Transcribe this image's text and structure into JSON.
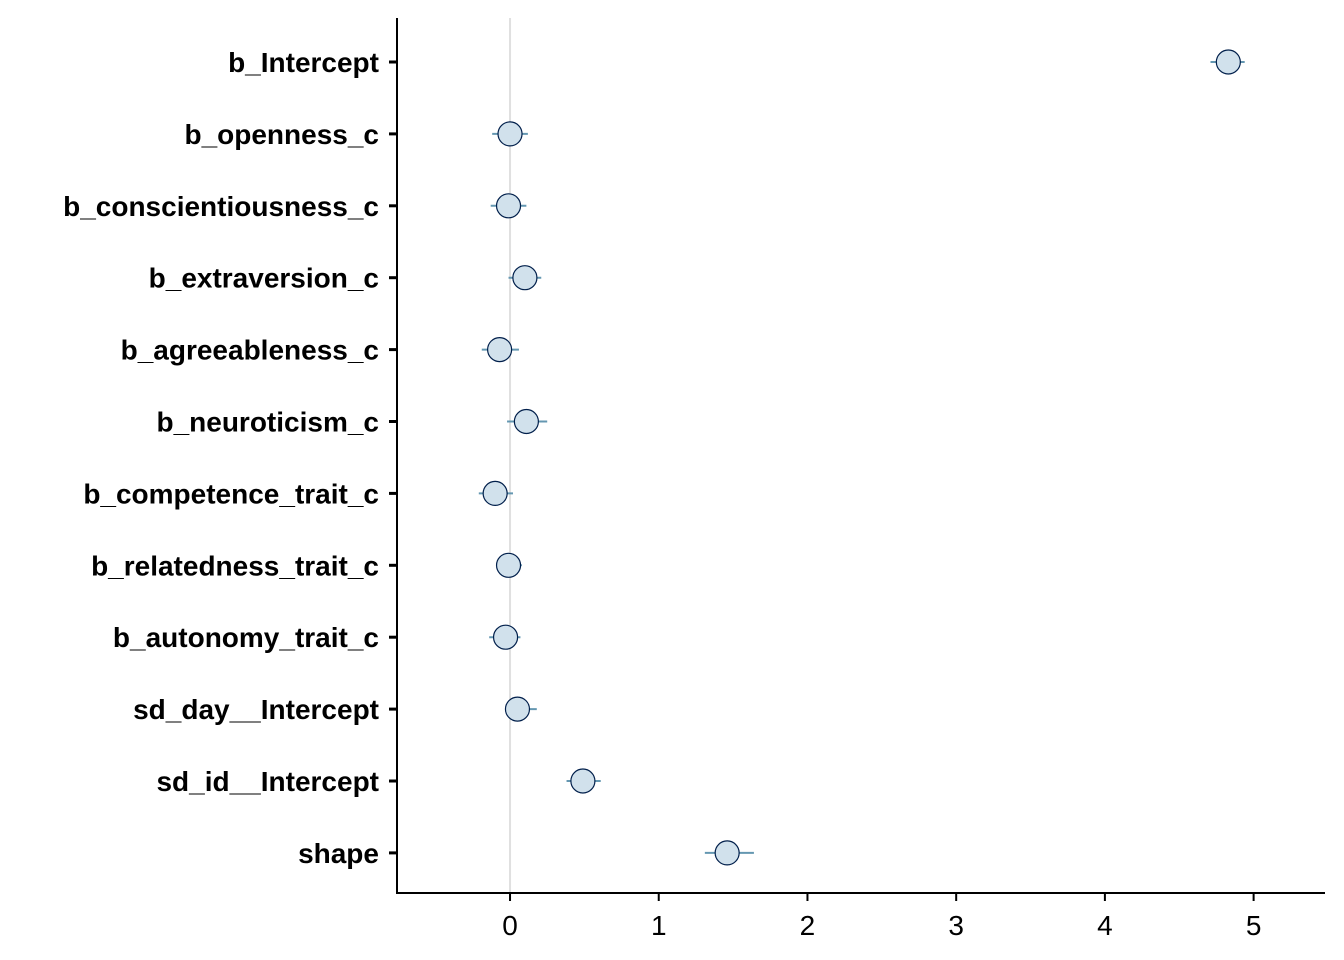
{
  "chart_data": {
    "type": "scatter",
    "title": "",
    "xlabel": "",
    "ylabel": "",
    "xlim": [
      -0.76,
      5.48
    ],
    "x_ticks": [
      0,
      1,
      2,
      3,
      4,
      5
    ],
    "x_tick_labels": [
      "0",
      "1",
      "2",
      "3",
      "4",
      "5"
    ],
    "reference_line_x": 0,
    "grid": false,
    "legend": "none",
    "colors": {
      "point_fill": "#d1e1ec",
      "point_stroke": "#011f4b",
      "interval": "#6497b1",
      "reference_line": "#e0e0e0",
      "axis": "#000000"
    },
    "parameters": [
      {
        "label": "b_Intercept",
        "estimate": 4.83,
        "lower": 4.71,
        "upper": 4.94
      },
      {
        "label": "b_openness_c",
        "estimate": 0.0,
        "lower": -0.12,
        "upper": 0.12
      },
      {
        "label": "b_conscientiousness_c",
        "estimate": -0.01,
        "lower": -0.13,
        "upper": 0.11
      },
      {
        "label": "b_extraversion_c",
        "estimate": 0.1,
        "lower": -0.01,
        "upper": 0.21
      },
      {
        "label": "b_agreeableness_c",
        "estimate": -0.07,
        "lower": -0.19,
        "upper": 0.06
      },
      {
        "label": "b_neuroticism_c",
        "estimate": 0.11,
        "lower": -0.02,
        "upper": 0.25
      },
      {
        "label": "b_competence_trait_c",
        "estimate": -0.1,
        "lower": -0.21,
        "upper": 0.02
      },
      {
        "label": "b_relatedness_trait_c",
        "estimate": -0.01,
        "lower": -0.09,
        "upper": 0.08
      },
      {
        "label": "b_autonomy_trait_c",
        "estimate": -0.03,
        "lower": -0.14,
        "upper": 0.07
      },
      {
        "label": "sd_day__Intercept",
        "estimate": 0.05,
        "lower": -0.02,
        "upper": 0.18
      },
      {
        "label": "sd_id__Intercept",
        "estimate": 0.49,
        "lower": 0.38,
        "upper": 0.61
      },
      {
        "label": "shape",
        "estimate": 1.46,
        "lower": 1.31,
        "upper": 1.64
      }
    ]
  }
}
